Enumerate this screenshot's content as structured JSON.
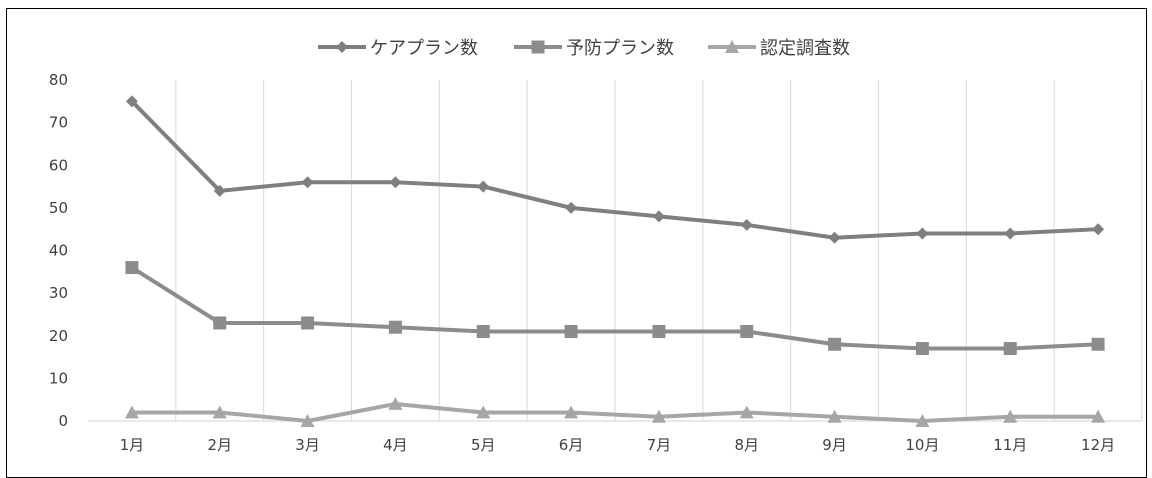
{
  "chart_data": {
    "type": "line",
    "categories": [
      "1月",
      "2月",
      "3月",
      "4月",
      "5月",
      "6月",
      "7月",
      "8月",
      "9月",
      "10月",
      "11月",
      "12月"
    ],
    "ylim": [
      0,
      80
    ],
    "yticks": [
      0,
      10,
      20,
      30,
      40,
      50,
      60,
      70,
      80
    ],
    "grid": "vertical",
    "legend_position": "top",
    "series": [
      {
        "name": "ケアプラン数",
        "marker": "diamond",
        "color": "#7f7f7f",
        "values": [
          75,
          54,
          56,
          56,
          55,
          50,
          48,
          46,
          43,
          44,
          44,
          45
        ]
      },
      {
        "name": "予防プラン数",
        "marker": "square",
        "color": "#8c8c8c",
        "values": [
          36,
          23,
          23,
          22,
          21,
          21,
          21,
          21,
          18,
          17,
          17,
          18
        ]
      },
      {
        "name": "認定調査数",
        "marker": "triangle",
        "color": "#a6a6a6",
        "values": [
          2,
          2,
          0,
          4,
          2,
          2,
          1,
          2,
          1,
          0,
          1,
          1
        ]
      }
    ]
  }
}
